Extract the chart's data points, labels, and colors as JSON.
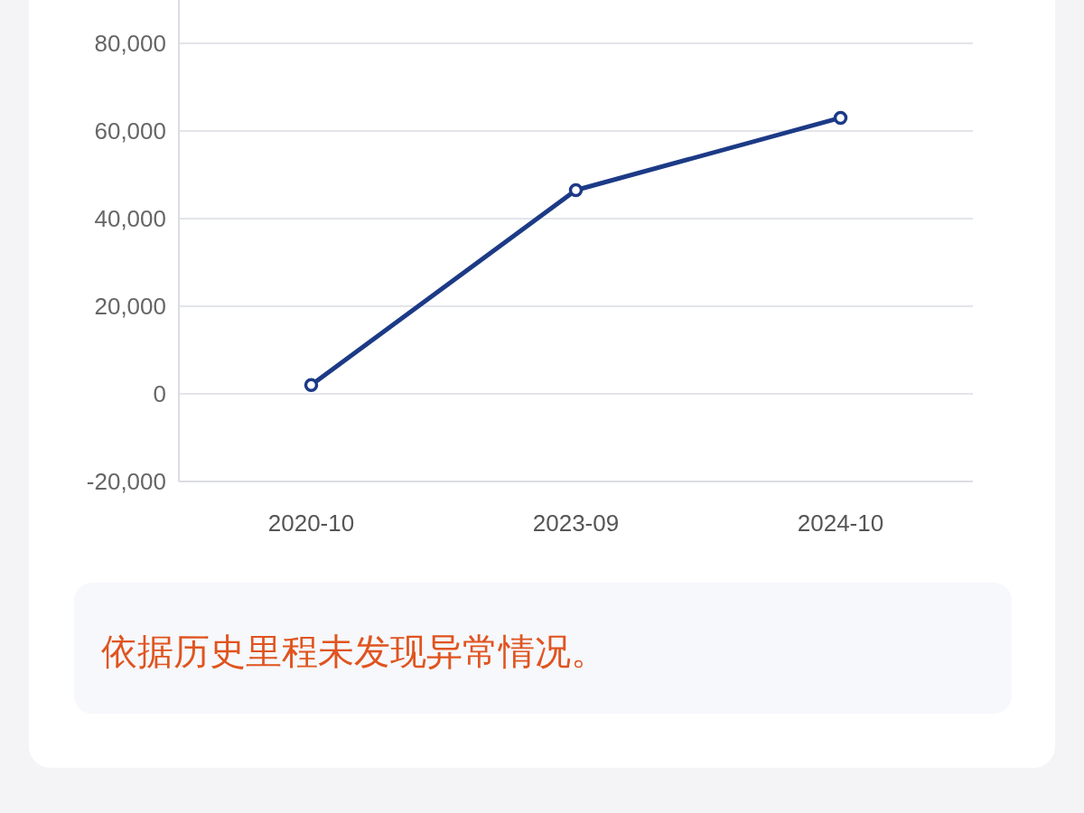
{
  "chart_data": {
    "type": "line",
    "categories": [
      "2020-10",
      "2023-09",
      "2024-10"
    ],
    "series": [
      {
        "color": "#1c3a86",
        "values": [
          2000,
          46500,
          63000
        ]
      }
    ],
    "ylim": [
      -20000,
      80000
    ],
    "yticks": [
      {
        "value": -20000,
        "label": "-20,000"
      },
      0,
      {
        "value": 20000,
        "label": "20,000"
      },
      {
        "value": 40000,
        "label": "40,000"
      },
      {
        "value": 60000,
        "label": "60,000"
      },
      {
        "value": 80000,
        "label": "80,000"
      }
    ],
    "grid": "y",
    "marker": "circle",
    "line_style": "solid",
    "annotations": [
      "依据历史里程未发现异常情况。"
    ]
  }
}
